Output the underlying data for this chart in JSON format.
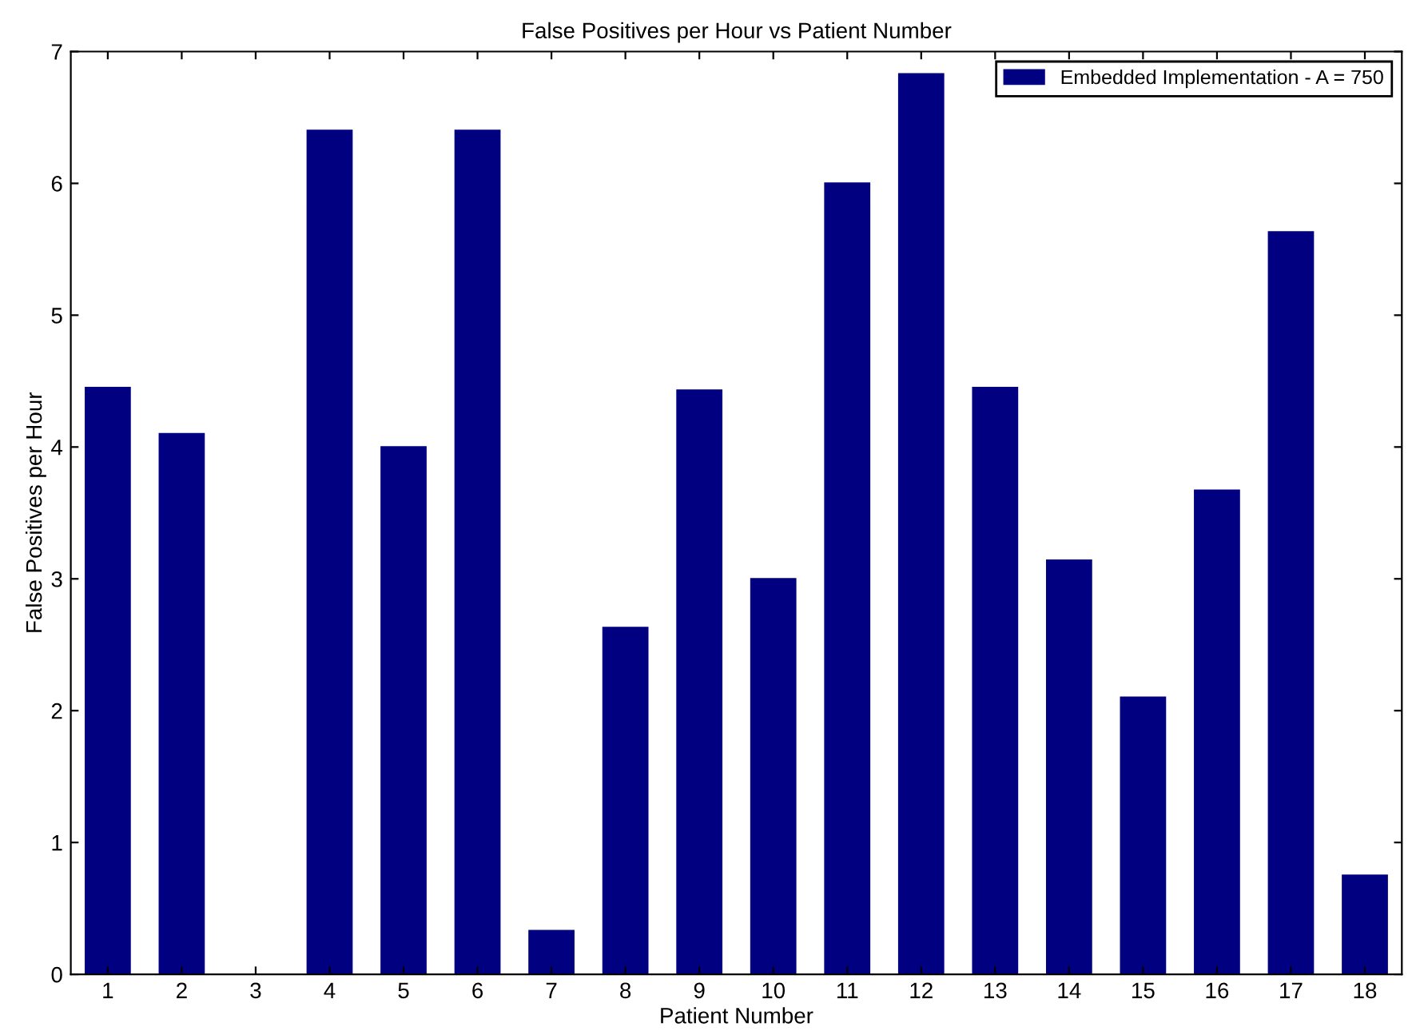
{
  "chart_data": {
    "type": "bar",
    "title": "False Positives per Hour vs Patient Number",
    "xlabel": "Patient Number",
    "ylabel": "False Positives per Hour",
    "categories": [
      "1",
      "2",
      "3",
      "4",
      "5",
      "6",
      "7",
      "8",
      "9",
      "10",
      "11",
      "12",
      "13",
      "14",
      "15",
      "16",
      "17",
      "18"
    ],
    "series": [
      {
        "name": "Embedded Implementation - A = 750",
        "color": "#000080",
        "values": [
          4.45,
          4.1,
          0,
          6.4,
          4.0,
          6.4,
          0.33,
          2.63,
          4.43,
          3.0,
          6.0,
          6.83,
          4.45,
          3.14,
          2.1,
          3.67,
          5.63,
          0.75
        ]
      }
    ],
    "ylim": [
      0,
      7
    ],
    "yticks": [
      0,
      1,
      2,
      3,
      4,
      5,
      6,
      7
    ],
    "grid": false,
    "legend": "top right"
  }
}
